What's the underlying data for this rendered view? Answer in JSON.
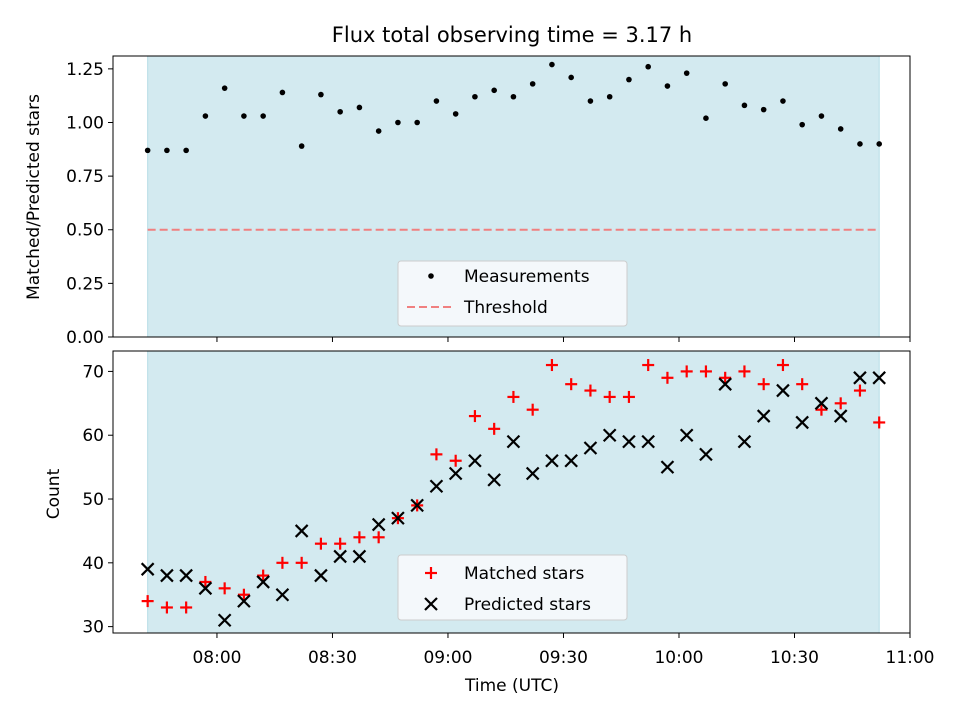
{
  "chart_data": [
    {
      "type": "scatter",
      "title": "Flux total observing time = 3.17 h",
      "xlabel": "",
      "ylabel": "Matched/Predicted stars",
      "xlim_minutes": [
        453,
        660
      ],
      "ylim": [
        0,
        1.31
      ],
      "yticks": [
        "0.00",
        "0.25",
        "0.50",
        "0.75",
        "1.00",
        "1.25"
      ],
      "shaded_span_minutes": [
        462,
        652
      ],
      "threshold": 0.5,
      "legend": {
        "measurements": "Measurements",
        "threshold": "Threshold",
        "placement": "lower center"
      },
      "x": [
        462,
        467,
        472,
        477,
        482,
        487,
        492,
        497,
        502,
        507,
        512,
        517,
        522,
        527,
        532,
        537,
        542,
        547,
        552,
        557,
        562,
        567,
        572,
        577,
        582,
        587,
        592,
        597,
        602,
        607,
        612,
        617,
        622,
        627,
        632,
        637,
        642,
        647,
        652
      ],
      "series": [
        {
          "name": "Measurements",
          "values": [
            0.87,
            0.87,
            0.87,
            1.03,
            1.16,
            1.03,
            1.03,
            1.14,
            0.89,
            1.13,
            1.05,
            1.07,
            0.96,
            1.0,
            1.0,
            1.1,
            1.04,
            1.12,
            1.15,
            1.12,
            1.18,
            1.27,
            1.21,
            1.1,
            1.12,
            1.2,
            1.26,
            1.17,
            1.23,
            1.02,
            1.18,
            1.08,
            1.06,
            1.1,
            0.99,
            1.03,
            0.97,
            0.9,
            0.9
          ]
        }
      ]
    },
    {
      "type": "scatter",
      "title": "",
      "xlabel": "Time (UTC)",
      "ylabel": "Count",
      "xlim_minutes": [
        453,
        660
      ],
      "ylim": [
        29,
        73.2
      ],
      "yticks": [
        "30",
        "40",
        "50",
        "60",
        "70"
      ],
      "xtick_minutes": [
        480,
        510,
        540,
        570,
        600,
        630,
        660
      ],
      "xticks": [
        "08:00",
        "08:30",
        "09:00",
        "09:30",
        "10:00",
        "10:30",
        "11:00"
      ],
      "shaded_span_minutes": [
        462,
        652
      ],
      "legend": {
        "matched": "Matched stars",
        "predicted": "Predicted stars",
        "placement": "lower center"
      },
      "x": [
        462,
        467,
        472,
        477,
        482,
        487,
        492,
        497,
        502,
        507,
        512,
        517,
        522,
        527,
        532,
        537,
        542,
        547,
        552,
        557,
        562,
        567,
        572,
        577,
        582,
        587,
        592,
        597,
        602,
        607,
        612,
        617,
        622,
        627,
        632,
        637,
        642,
        647,
        652
      ],
      "series": [
        {
          "name": "Matched stars",
          "marker": "plus",
          "values": [
            34,
            33,
            33,
            37,
            36,
            35,
            38,
            40,
            40,
            43,
            43,
            44,
            44,
            47,
            49,
            57,
            56,
            63,
            61,
            66,
            64,
            71,
            68,
            67,
            66,
            66,
            71,
            69,
            70,
            70,
            69,
            70,
            68,
            71,
            68,
            64,
            65,
            67,
            62
          ]
        },
        {
          "name": "Predicted stars",
          "marker": "x",
          "values": [
            39,
            38,
            38,
            36,
            31,
            34,
            37,
            35,
            45,
            38,
            41,
            41,
            46,
            47,
            49,
            52,
            54,
            56,
            53,
            59,
            54,
            56,
            56,
            58,
            60,
            59,
            59,
            55,
            60,
            57,
            68,
            59,
            63,
            67,
            62,
            65,
            63,
            69,
            69
          ]
        }
      ]
    }
  ],
  "colors": {
    "shade": "#d3eaf0",
    "shade_edge": "#b7dde6",
    "matched": "#ff0000",
    "predicted": "#000000",
    "threshold": "#f08080",
    "legend_bg": "#f4f8fb"
  }
}
